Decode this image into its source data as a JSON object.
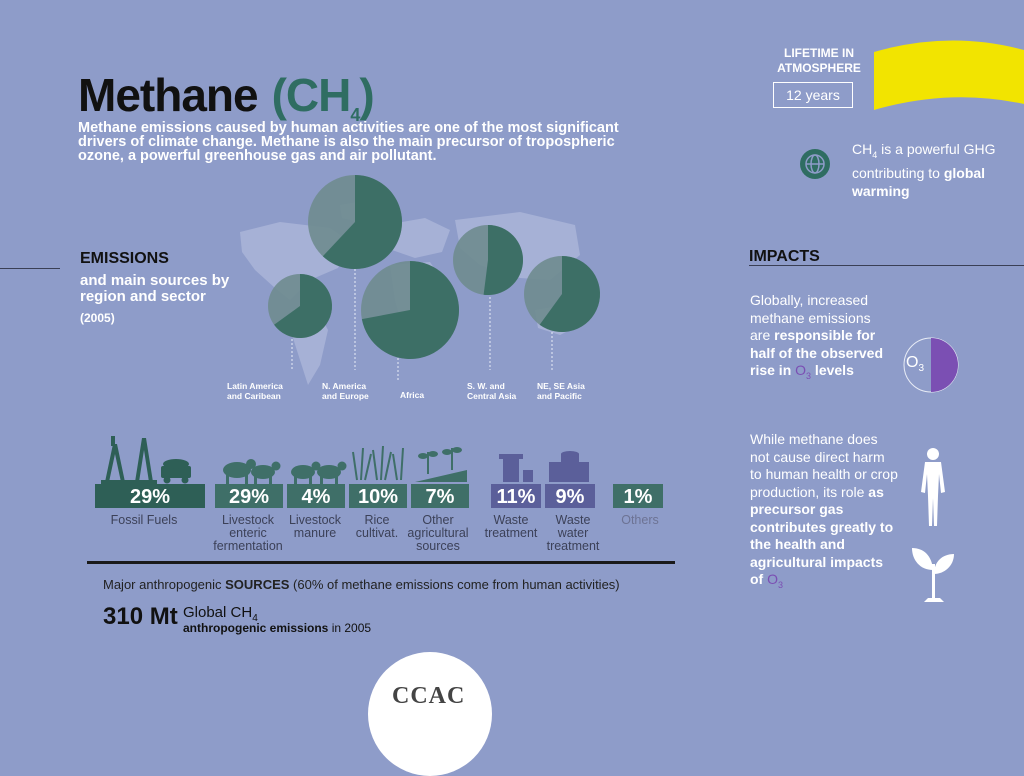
{
  "title": {
    "word": "Methane",
    "formula": "(CH",
    "sub": "4",
    "close": ")"
  },
  "intro": "Methane emissions caused by human activities are one of the most significant drivers of climate change.  Methane is also the main precursor of tropospheric ozone, a powerful greenhouse gas and air pollutant.",
  "emissions": {
    "heading": "EMISSIONS",
    "subtitle": "and main sources by region and sector",
    "year": "(2005)",
    "regions": [
      {
        "label": "Latin America and Caribean",
        "share": 0.65
      },
      {
        "label": "N. America and Europe",
        "share": 0.62
      },
      {
        "label": "Africa",
        "share": 0.72
      },
      {
        "label": "S. W. and Central Asia",
        "share": 0.52
      },
      {
        "label": "NE, SE Asia and Pacific",
        "share": 0.6
      }
    ]
  },
  "sectors": [
    {
      "pct": "29%",
      "label": "Fossil Fuels"
    },
    {
      "pct": "29%",
      "label": "Livestock enteric fermentation"
    },
    {
      "pct": "4%",
      "label": "Livestock manure"
    },
    {
      "pct": "10%",
      "label": "Rice cultivat."
    },
    {
      "pct": "7%",
      "label": "Other agricultural sources"
    },
    {
      "pct": "11%",
      "label": "Waste treatment"
    },
    {
      "pct": "9%",
      "label": "Waste water treatment"
    },
    {
      "pct": "1%",
      "label": "Others"
    }
  ],
  "major": {
    "prefix": "Major anthropogenic ",
    "bold": "SOURCES",
    "suffix": " (60% of methane emissions come from human activities)"
  },
  "total": {
    "value": "310 Mt",
    "global": "Global CH",
    "sub": "4",
    "anthro": "anthropogenic emissions",
    "year": " in 2005"
  },
  "lifetime": {
    "label": "LIFETIME IN ATMOSPHERE",
    "value": "12 years"
  },
  "ghg": {
    "pre": "CH",
    "sub": "4",
    "mid": " is a powerful GHG contributing to ",
    "bold": "global warming"
  },
  "impacts": {
    "heading": "IMPACTS",
    "p1_a": "Globally, increased methane emissions are ",
    "p1_b": "responsible for half of the observed rise in ",
    "p1_o": "O",
    "p1_sub": "3",
    "p1_c": " levels",
    "o3_label": "O",
    "o3_sub": "3",
    "p2_a": "While methane does not cause direct harm to human health or crop production, its role ",
    "p2_b": "as precursor gas contributes greatly to the health and agricultural impacts of ",
    "p2_o": "O",
    "p2_sub": "3"
  },
  "logo": "CCAC",
  "colors": {
    "background": "#8e9cc9",
    "teal": "#2f6d62",
    "dark_teal": "#3d6f66",
    "purple": "#7b4fb3",
    "yellow": "#f2e400"
  }
}
